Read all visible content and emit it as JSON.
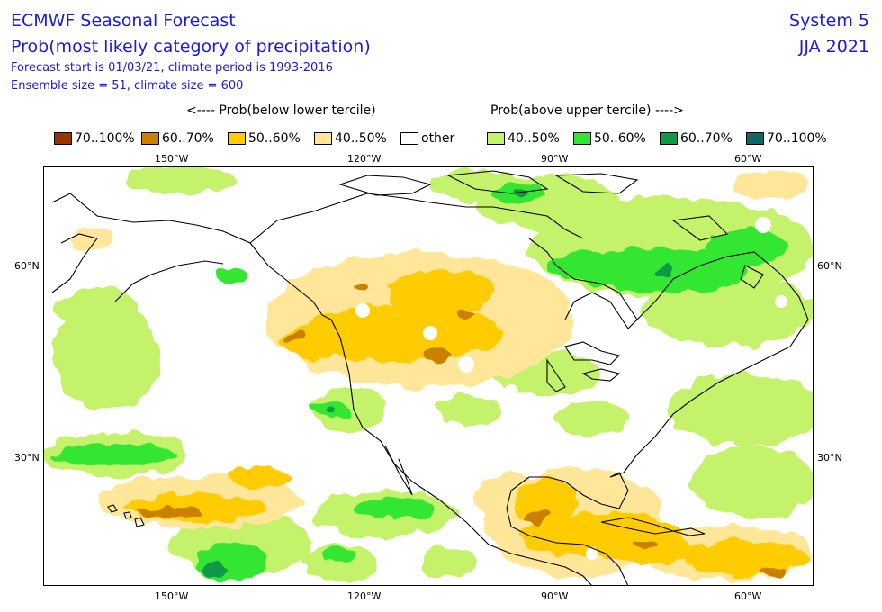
{
  "header": {
    "title": "ECMWF Seasonal Forecast",
    "subtitle": "Prob(most likely category of precipitation)",
    "forecast_line": "Forecast start is 01/03/21, climate period is 1993-2016",
    "ensemble_line": "Ensemble size = 51, climate size = 600",
    "system": "System 5",
    "season": "JJA 2021"
  },
  "legend": {
    "below_heading": "<---- Prob(below lower tercile)",
    "above_heading": "Prob(above upper tercile) ---->",
    "items": [
      {
        "label": "70..100%",
        "color": "#993300"
      },
      {
        "label": "60..70%",
        "color": "#cc8000"
      },
      {
        "label": "50..60%",
        "color": "#ffcc00"
      },
      {
        "label": "40..50%",
        "color": "#ffe699"
      },
      {
        "label": "other",
        "color": "#ffffff"
      },
      {
        "label": "40..50%",
        "color": "#c4f26b"
      },
      {
        "label": "50..60%",
        "color": "#33e633"
      },
      {
        "label": "60..70%",
        "color": "#119944"
      },
      {
        "label": "70..100%",
        "color": "#116666"
      }
    ]
  },
  "axes": {
    "lon_labels": [
      "150°W",
      "120°W",
      "90°W",
      "60°W"
    ],
    "lat_labels": [
      "60°N",
      "30°N"
    ]
  },
  "map": {
    "region": "North America and North Pacific",
    "projection": "equirectangular",
    "lon_range": [
      -170,
      -50
    ],
    "lat_range": [
      10,
      75
    ],
    "colors": {
      "below_40": "#ffe699",
      "below_50": "#ffcc00",
      "below_60": "#cc8000",
      "above_40": "#c4f26b",
      "above_50": "#33e633",
      "above_60": "#119944"
    }
  }
}
